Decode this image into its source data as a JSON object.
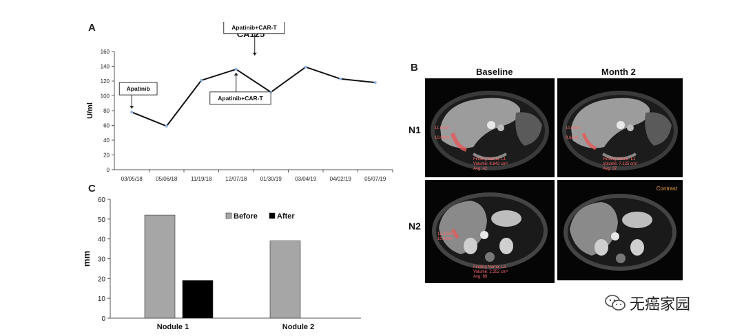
{
  "panel_labels": {
    "a": "A",
    "b": "B",
    "c": "C"
  },
  "chart_data": [
    {
      "id": "A",
      "type": "line",
      "title": "CA125",
      "ylabel": "U/ml",
      "xlabel": "",
      "categories": [
        "03/05/18",
        "05/06/18",
        "11/19/18",
        "12/07/18",
        "01/30/19",
        "03/04/19",
        "04/02/19",
        "05/07/19"
      ],
      "series": [
        {
          "values": [
            78,
            59,
            121,
            136,
            105,
            139,
            123,
            118
          ],
          "color": "#111111",
          "marker_color": "#8fb4e6"
        }
      ],
      "ylim": [
        0,
        160
      ],
      "yticks": [
        0,
        20,
        40,
        60,
        80,
        100,
        120,
        140,
        160
      ],
      "grid": false,
      "annotations": [
        {
          "text": "Apatinib",
          "category_index": 0,
          "placement": "above-left"
        },
        {
          "text": "Apatinib+CAR-T",
          "category_index": 3,
          "placement": "above-right"
        },
        {
          "text": "Apatinib+CAR-T",
          "category_index": 3,
          "placement": "below-right"
        }
      ]
    },
    {
      "id": "C",
      "type": "bar",
      "ylabel": "mm",
      "xlabel": "",
      "categories": [
        "Nodule 1",
        "Nodule 2"
      ],
      "series": [
        {
          "name": "Before",
          "values": [
            52,
            39
          ],
          "color": "#a6a6a6"
        },
        {
          "name": "After",
          "values": [
            19,
            0
          ],
          "color": "#000000"
        }
      ],
      "ylim": [
        0,
        60
      ],
      "yticks": [
        0,
        10,
        20,
        30,
        40,
        50,
        60
      ],
      "grid": false,
      "legend_position": "top-center"
    }
  ],
  "scans": {
    "columns": [
      "Baseline",
      "Month 2"
    ],
    "rows": [
      "N1",
      "N2"
    ],
    "captions": {
      "n1_baseline_left": "11.9mm\n\n10.0mm",
      "n1_baseline_bottom": "Finding Name: L1\nVolume: 8.842 cm³\nAvg: 42",
      "n1_month2_left": "10.5mm\n\n9.6mm",
      "n1_month2_bottom": "Finding Name: L1\nVolume: 7.125 cm³\nAvg: 37",
      "n2_baseline_left": "12.5mm\n10.4mm",
      "n2_baseline_bottom": "Finding Name: L2\nVolume: 2.352 cm³\nAvg: 89",
      "n2_month2_contrast": "Contrast"
    }
  },
  "watermark": {
    "text": "无癌家园",
    "icon": "wechat-icon"
  }
}
